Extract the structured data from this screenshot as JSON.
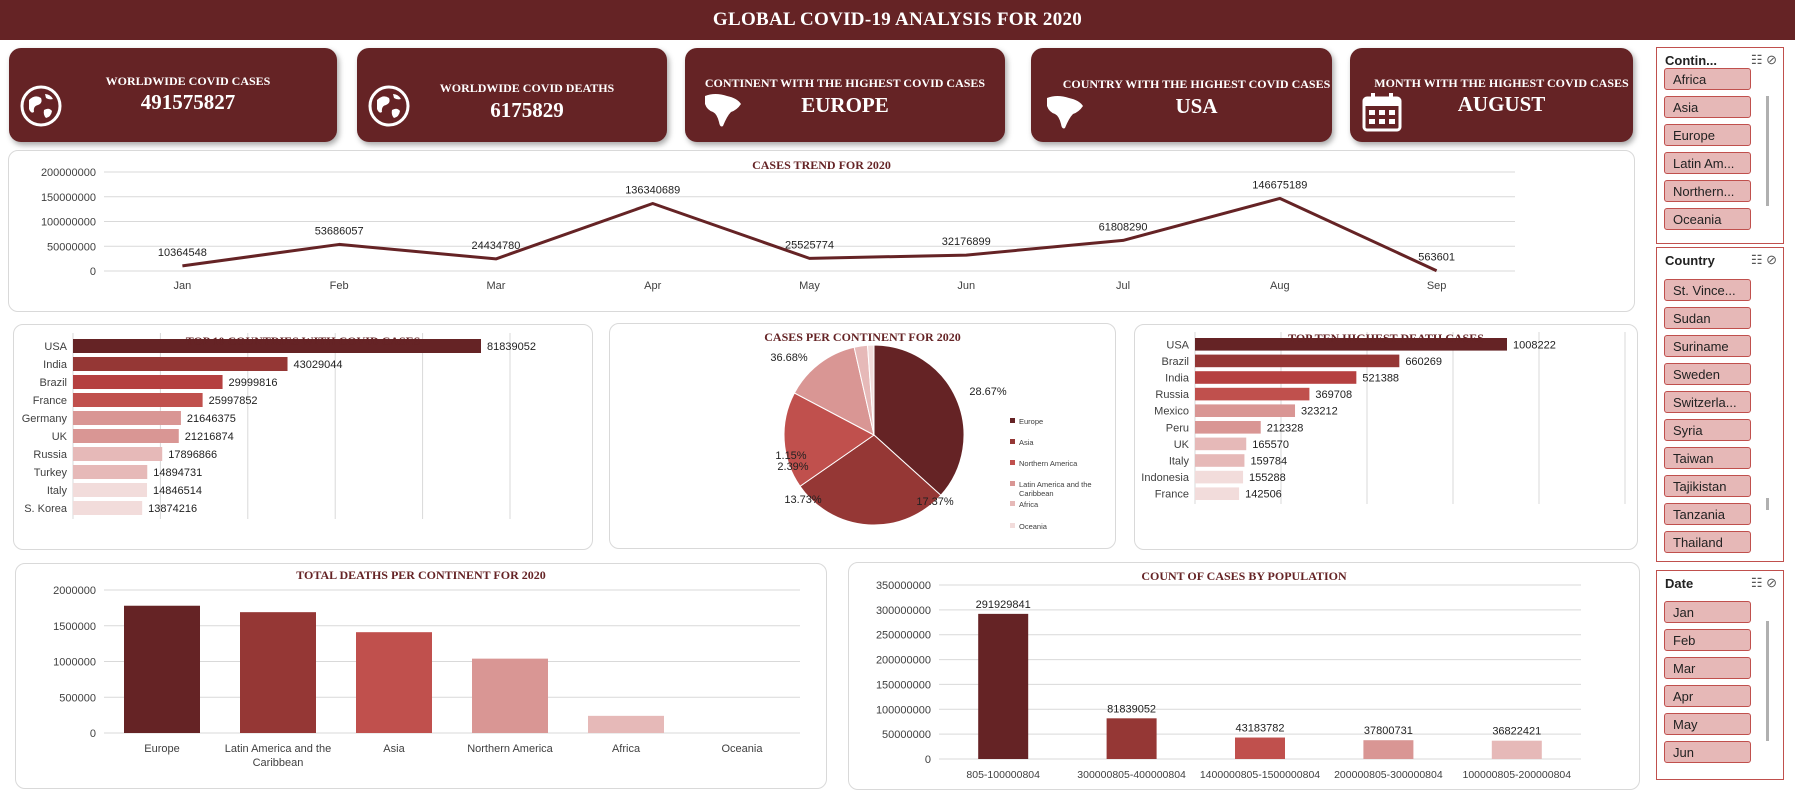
{
  "page_title": "GLOBAL COVID-19 ANALYSIS FOR 2020",
  "colors": {
    "dark": "#652325",
    "c2": "#953735",
    "c3": "#c0504d",
    "c4": "#d99694",
    "c5": "#e6b9b8",
    "c6": "#f2dcdb"
  },
  "kpis": {
    "worldwide_cases": {
      "label": "WORLDWIDE COVID CASES",
      "value": "491575827",
      "icon": "globe-icon"
    },
    "worldwide_deaths": {
      "label": "WORLDWIDE COVID DEATHS",
      "value": "6175829",
      "icon": "globe-icon"
    },
    "top_continent": {
      "label": "CONTINENT WITH THE HIGHEST COVID CASES",
      "value": "EUROPE",
      "icon": "continent-map-icon"
    },
    "top_country": {
      "label": "COUNTRY WITH THE HIGHEST COVID CASES",
      "value": "USA",
      "icon": "continent-map-icon"
    },
    "top_month": {
      "label": "MONTH WITH THE HIGHEST COVID CASES",
      "value": "AUGUST",
      "icon": "calendar-icon"
    }
  },
  "slicers": {
    "continent": {
      "title": "Contin...",
      "items": [
        "Africa",
        "Asia",
        "Europe",
        "Latin Am...",
        "Northern...",
        "Oceania"
      ]
    },
    "country": {
      "title": "Country",
      "items": [
        "St. Vince...",
        "Sudan",
        "Suriname",
        "Sweden",
        "Switzerla...",
        "Syria",
        "Taiwan",
        "Tajikistan",
        "Tanzania",
        "Thailand"
      ]
    },
    "date": {
      "title": "Date",
      "items": [
        "Jan",
        "Feb",
        "Mar",
        "Apr",
        "May",
        "Jun"
      ]
    }
  },
  "chart_data": [
    {
      "id": "trend",
      "type": "line",
      "title": "CASES TREND FOR 2020",
      "categories": [
        "Jan",
        "Feb",
        "Mar",
        "Apr",
        "May",
        "Jun",
        "Jul",
        "Aug",
        "Sep"
      ],
      "values": [
        10364548,
        53686057,
        24434780,
        136340689,
        25525774,
        32176899,
        61808290,
        146675189,
        563601
      ],
      "ylim": [
        0,
        200000000
      ],
      "yticks": [
        "0",
        "50000000",
        "100000000",
        "150000000",
        "200000000"
      ],
      "grid": true
    },
    {
      "id": "top_countries",
      "type": "bar",
      "title": "TOP 10 COUNTRIES WITH COVID CASES",
      "categories": [
        "USA",
        "India",
        "Brazil",
        "France",
        "Germany",
        "UK",
        "Russia",
        "Turkey",
        "Italy",
        "S. Korea"
      ],
      "values": [
        81839052,
        43029044,
        29999816,
        25997852,
        21646375,
        21216874,
        17896866,
        14894731,
        14846514,
        13874216
      ],
      "orientation": "horizontal",
      "grid": true
    },
    {
      "id": "continent_pie",
      "type": "pie",
      "title": "CASES PER CONTINENT FOR 2020",
      "categories": [
        "Europe",
        "Asia",
        "Northern America",
        "Latin America and the Caribbean",
        "Africa",
        "Oceania"
      ],
      "values": [
        36.68,
        28.67,
        17.37,
        13.73,
        2.39,
        1.15
      ],
      "labels": [
        "36.68%",
        "28.67%",
        "17.37%",
        "13.73%",
        "2.39%",
        "1.15%"
      ],
      "legend": "right"
    },
    {
      "id": "top_deaths",
      "type": "bar",
      "title": "TOP TEN HIGHEST DEATH CASES",
      "categories": [
        "USA",
        "Brazil",
        "India",
        "Russia",
        "Mexico",
        "Peru",
        "UK",
        "Italy",
        "Indonesia",
        "France"
      ],
      "values": [
        1008222,
        660269,
        521388,
        369708,
        323212,
        212328,
        165570,
        159784,
        155288,
        142506
      ],
      "orientation": "horizontal",
      "grid": true
    },
    {
      "id": "deaths_continent",
      "type": "bar",
      "title": "TOTAL DEATHS PER CONTINENT FOR 2020",
      "categories": [
        "Europe",
        "Latin America and the Caribbean",
        "Asia",
        "Northern America",
        "Africa",
        "Oceania"
      ],
      "values": [
        1780000,
        1690000,
        1410000,
        1040000,
        240000,
        0
      ],
      "ylim": [
        0,
        2000000
      ],
      "yticks": [
        "0",
        "500000",
        "1000000",
        "1500000",
        "2000000"
      ],
      "grid": true
    },
    {
      "id": "population",
      "type": "bar",
      "title": "COUNT OF CASES BY POPULATION",
      "categories": [
        "805-100000804",
        "300000805-400000804",
        "1400000805-1500000804",
        "200000805-300000804",
        "100000805-200000804"
      ],
      "values": [
        291929841,
        81839052,
        43183782,
        37800731,
        36822421
      ],
      "ylim": [
        0,
        350000000
      ],
      "yticks": [
        "0",
        "50000000",
        "100000000",
        "150000000",
        "200000000",
        "250000000",
        "300000000",
        "350000000"
      ],
      "grid": true
    }
  ]
}
